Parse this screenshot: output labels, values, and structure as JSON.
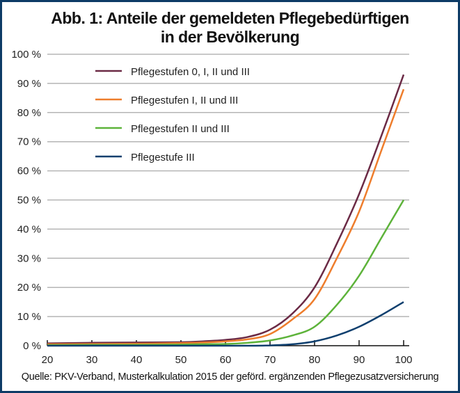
{
  "chart_data": {
    "type": "line",
    "title": "Abb. 1: Anteile der gemeldeten Pflegebedürftigen in der Bevölkerung",
    "title_lines": [
      "Abb. 1: Anteile der gemeldeten Pflegebedürftigen",
      "in der Bevölkerung"
    ],
    "xlabel": "",
    "ylabel": "",
    "xlim": [
      20,
      100
    ],
    "ylim": [
      0,
      100
    ],
    "x_ticks": [
      "20",
      "30",
      "40",
      "50",
      "60",
      "70",
      "80",
      "90",
      "100"
    ],
    "y_ticks": [
      "0 %",
      "10 %",
      "20 %",
      "30 %",
      "40 %",
      "50 %",
      "60 %",
      "70 %",
      "80 %",
      "90 %",
      "100 %"
    ],
    "grid": "horizontal",
    "legend_position": "top-left",
    "x": [
      20,
      30,
      40,
      50,
      55,
      60,
      65,
      70,
      75,
      80,
      85,
      90,
      95,
      100
    ],
    "series": [
      {
        "name": "Pflegestufen 0, I, II und III",
        "color": "#6b2a45",
        "values": [
          0.8,
          1,
          1.1,
          1.2,
          1.5,
          2,
          3,
          5.5,
          11,
          20,
          35,
          52,
          72,
          93
        ]
      },
      {
        "name": "Pflegestufen I, II und III",
        "color": "#ee7d2c",
        "values": [
          0.5,
          0.6,
          0.7,
          0.9,
          1.1,
          1.5,
          2.2,
          4,
          9,
          16,
          30,
          46,
          67,
          88
        ]
      },
      {
        "name": "Pflegestufen II und III",
        "color": "#5db33a",
        "values": [
          0.2,
          0.3,
          0.3,
          0.4,
          0.5,
          0.6,
          1,
          1.8,
          3.5,
          6.5,
          14,
          24,
          37,
          50
        ]
      },
      {
        "name": "Pflegestufe III",
        "color": "#0e3f6e",
        "values": [
          0,
          0,
          0,
          0,
          0,
          0,
          0,
          0.1,
          0.5,
          1.5,
          3.5,
          6.5,
          10.5,
          15
        ]
      }
    ]
  },
  "source": "Quelle: PKV-Verband, Musterkalkulation 2015 der geförd. ergänzenden Pflegezusatzversicherung"
}
